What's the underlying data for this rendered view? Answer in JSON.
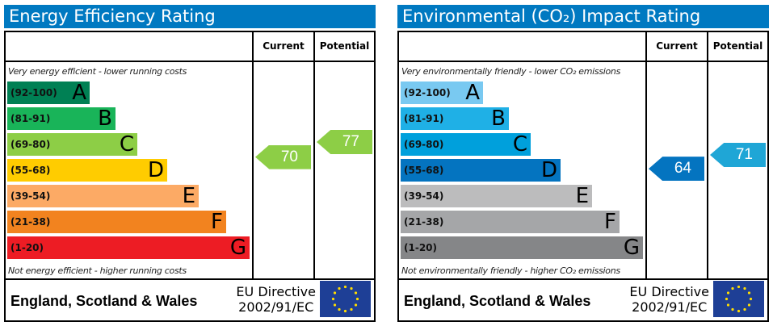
{
  "panels": [
    {
      "title": "Energy Efficiency Rating",
      "current_label": "Current",
      "potential_label": "Potential",
      "top_note": "Very energy efficient - lower running costs",
      "bottom_note": "Not energy efficient - higher running costs",
      "bands": [
        {
          "range": "(92-100)",
          "letter": "A",
          "color": "#008054"
        },
        {
          "range": "(81-91)",
          "letter": "B",
          "color": "#19b459"
        },
        {
          "range": "(69-80)",
          "letter": "C",
          "color": "#8dce46"
        },
        {
          "range": "(55-68)",
          "letter": "D",
          "color": "#ffcc00"
        },
        {
          "range": "(39-54)",
          "letter": "E",
          "color": "#fcaa65"
        },
        {
          "range": "(21-38)",
          "letter": "F",
          "color": "#f2831f"
        },
        {
          "range": "(1-20)",
          "letter": "G",
          "color": "#ed1c24"
        }
      ],
      "current": {
        "value": "70",
        "color": "#8dce46"
      },
      "potential": {
        "value": "77",
        "color": "#8dce46"
      },
      "region": "England, Scotland & Wales",
      "directive_line1": "EU Directive",
      "directive_line2": "2002/91/EC"
    },
    {
      "title": "Environmental (CO₂) Impact Rating",
      "current_label": "Current",
      "potential_label": "Potential",
      "top_note": "Very environmentally friendly - lower CO₂ emissions",
      "bottom_note": "Not environmentally friendly - higher CO₂ emissions",
      "bands": [
        {
          "range": "(92-100)",
          "letter": "A",
          "color": "#79c9f1"
        },
        {
          "range": "(81-91)",
          "letter": "B",
          "color": "#1fb0e6"
        },
        {
          "range": "(69-80)",
          "letter": "C",
          "color": "#00a0dc"
        },
        {
          "range": "(55-68)",
          "letter": "D",
          "color": "#0474c0"
        },
        {
          "range": "(39-54)",
          "letter": "E",
          "color": "#bcbcbd"
        },
        {
          "range": "(21-38)",
          "letter": "F",
          "color": "#a5a6a8"
        },
        {
          "range": "(1-20)",
          "letter": "G",
          "color": "#858688"
        }
      ],
      "current": {
        "value": "64",
        "color": "#0474c0"
      },
      "potential": {
        "value": "71",
        "color": "#1fa6d6"
      },
      "region": "England, Scotland & Wales",
      "directive_line1": "EU Directive",
      "directive_line2": "2002/91/EC"
    }
  ]
}
